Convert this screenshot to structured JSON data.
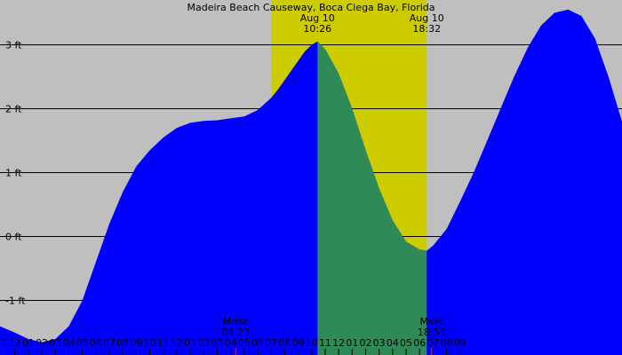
{
  "colors": {
    "background": "#bfbfbf",
    "daylight": "#cccc00",
    "tide_fill": "#0000ff",
    "tide_fill_highlight": "#2e8b57",
    "line": "#000000",
    "tick_highlight": "#ff0000"
  },
  "chart_data": {
    "type": "area",
    "title": "Madeira Beach Causeway, Boca Ciega Bay, Florida",
    "y_unit": "ft",
    "ylim": [
      -1.85,
      3.7
    ],
    "xlim_hours": [
      -13.1,
      33.0
    ],
    "y_ticks": [
      {
        "value": 3,
        "label": "3 ft"
      },
      {
        "value": 2,
        "label": "2 ft"
      },
      {
        "value": 1,
        "label": "1 ft"
      },
      {
        "value": 0,
        "label": "0 ft"
      },
      {
        "value": -1,
        "label": "-1 ft"
      }
    ],
    "x_ticks": [
      {
        "hour": -13,
        "label": "11"
      },
      {
        "hour": -12,
        "label": "12"
      },
      {
        "hour": -11,
        "label": "01"
      },
      {
        "hour": -10,
        "label": "02"
      },
      {
        "hour": -9,
        "label": "03"
      },
      {
        "hour": -8,
        "label": "04"
      },
      {
        "hour": -7,
        "label": "05"
      },
      {
        "hour": -6,
        "label": "06"
      },
      {
        "hour": -5,
        "label": "07"
      },
      {
        "hour": -4,
        "label": "08"
      },
      {
        "hour": -3,
        "label": "09"
      },
      {
        "hour": -2,
        "label": "10"
      },
      {
        "hour": -1,
        "label": "11"
      },
      {
        "hour": 0,
        "label": "12"
      },
      {
        "hour": 1,
        "label": "01"
      },
      {
        "hour": 2,
        "label": "02"
      },
      {
        "hour": 3,
        "label": "03"
      },
      {
        "hour": 4,
        "label": "04"
      },
      {
        "hour": 5,
        "label": "05"
      },
      {
        "hour": 6,
        "label": "06"
      },
      {
        "hour": 7,
        "label": "07"
      },
      {
        "hour": 8,
        "label": "08"
      },
      {
        "hour": 9,
        "label": "09"
      },
      {
        "hour": 10,
        "label": "10"
      },
      {
        "hour": 11,
        "label": "11"
      },
      {
        "hour": 12,
        "label": "12"
      },
      {
        "hour": 13,
        "label": "01"
      },
      {
        "hour": 14,
        "label": "02"
      },
      {
        "hour": 15,
        "label": "03"
      },
      {
        "hour": 16,
        "label": "04"
      },
      {
        "hour": 17,
        "label": "05"
      },
      {
        "hour": 18,
        "label": "06"
      },
      {
        "hour": 19,
        "label": "07"
      },
      {
        "hour": 20,
        "label": "08"
      },
      {
        "hour": 21,
        "label": "09"
      }
    ],
    "daylight": {
      "start_hour": 7.0,
      "end_hour": 18.53
    },
    "highlight_range": {
      "start_hour": 10.43,
      "end_hour": 18.53
    },
    "events": [
      {
        "date": "Aug 10",
        "time": "10:26",
        "hour": 10.43
      },
      {
        "date": "Aug 10",
        "time": "18:32",
        "hour": 18.53
      }
    ],
    "moon": [
      {
        "name": "Mrise",
        "time": "04:23",
        "hour": 4.38
      },
      {
        "name": "Mset",
        "time": "18:53",
        "hour": 18.88
      }
    ],
    "series": [
      {
        "hours": [
          -13.1,
          -12.0,
          -11.0,
          -10.0,
          -9.0,
          -8.0,
          -7.0,
          -6.0,
          -5.0,
          -4.0,
          -3.0,
          -2.0,
          -1.0,
          0.0,
          1.0,
          2.0,
          3.0,
          4.0,
          5.0,
          6.0,
          7.0,
          7.5,
          8.0,
          8.5,
          9.0,
          9.5,
          10.0,
          10.43,
          11.0,
          12.0,
          13.0,
          14.0,
          15.0,
          16.0,
          17.0,
          18.0,
          18.53,
          19.0,
          20.0,
          21.0,
          22.0,
          23.0,
          24.0,
          25.0,
          26.0,
          27.0,
          28.0,
          29.0,
          30.0,
          31.0,
          32.0,
          33.0
        ],
        "heights": [
          -1.4,
          -1.5,
          -1.6,
          -1.65,
          -1.6,
          -1.4,
          -1.0,
          -0.4,
          0.2,
          0.7,
          1.1,
          1.35,
          1.55,
          1.7,
          1.78,
          1.81,
          1.82,
          1.85,
          1.88,
          1.98,
          2.17,
          2.3,
          2.45,
          2.6,
          2.75,
          2.9,
          3.0,
          3.05,
          2.93,
          2.55,
          2.0,
          1.35,
          0.75,
          0.25,
          -0.08,
          -0.2,
          -0.22,
          -0.14,
          0.12,
          0.55,
          1.0,
          1.5,
          2.0,
          2.5,
          2.95,
          3.3,
          3.5,
          3.55,
          3.45,
          3.1,
          2.5,
          1.8
        ]
      }
    ]
  }
}
